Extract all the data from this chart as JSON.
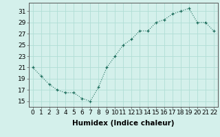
{
  "x": [
    0,
    1,
    2,
    3,
    4,
    5,
    6,
    7,
    8,
    9,
    10,
    11,
    12,
    13,
    14,
    15,
    16,
    17,
    18,
    19,
    20,
    21,
    22
  ],
  "y": [
    21,
    19.5,
    18,
    17,
    16.5,
    16.5,
    15.5,
    15,
    17.5,
    21,
    23,
    25,
    26,
    27.5,
    27.5,
    29,
    29.5,
    30.5,
    31,
    31.5,
    29,
    29,
    27.5
  ],
  "line_color": "#1a6b5a",
  "marker_color": "#1a6b5a",
  "bg_color": "#d4f0eb",
  "grid_color": "#b0ddd5",
  "xlabel": "Humidex (Indice chaleur)",
  "ylabel_ticks": [
    15,
    17,
    19,
    21,
    23,
    25,
    27,
    29,
    31
  ],
  "xlim": [
    -0.5,
    22.5
  ],
  "ylim": [
    14.0,
    32.5
  ],
  "xticks": [
    0,
    1,
    2,
    3,
    4,
    5,
    6,
    7,
    8,
    9,
    10,
    11,
    12,
    13,
    14,
    15,
    16,
    17,
    18,
    19,
    20,
    21,
    22
  ],
  "tick_fontsize": 6.5,
  "label_fontsize": 7.5
}
